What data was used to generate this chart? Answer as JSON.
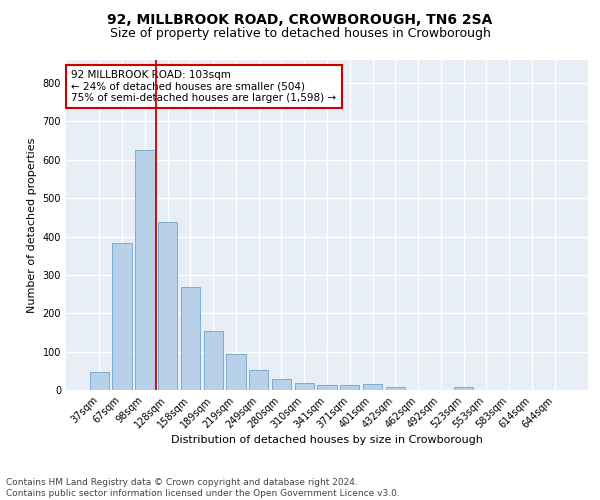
{
  "title": "92, MILLBROOK ROAD, CROWBOROUGH, TN6 2SA",
  "subtitle": "Size of property relative to detached houses in Crowborough",
  "xlabel": "Distribution of detached houses by size in Crowborough",
  "ylabel": "Number of detached properties",
  "categories": [
    "37sqm",
    "67sqm",
    "98sqm",
    "128sqm",
    "158sqm",
    "189sqm",
    "219sqm",
    "249sqm",
    "280sqm",
    "310sqm",
    "341sqm",
    "371sqm",
    "401sqm",
    "432sqm",
    "462sqm",
    "492sqm",
    "523sqm",
    "553sqm",
    "583sqm",
    "614sqm",
    "644sqm"
  ],
  "values": [
    47,
    383,
    625,
    438,
    268,
    154,
    95,
    52,
    28,
    18,
    12,
    12,
    15,
    7,
    0,
    0,
    7,
    0,
    0,
    0,
    0
  ],
  "bar_color": "#b8d0e8",
  "bar_edge_color": "#7aadd4",
  "vline_x": 2.5,
  "vline_color": "#cc0000",
  "annotation_text": "92 MILLBROOK ROAD: 103sqm\n← 24% of detached houses are smaller (504)\n75% of semi-detached houses are larger (1,598) →",
  "annotation_box_color": "#ffffff",
  "annotation_box_edge_color": "#cc0000",
  "ylim": [
    0,
    860
  ],
  "yticks": [
    0,
    100,
    200,
    300,
    400,
    500,
    600,
    700,
    800
  ],
  "background_color": "#e8eef5",
  "grid_color": "#ffffff",
  "footer_text": "Contains HM Land Registry data © Crown copyright and database right 2024.\nContains public sector information licensed under the Open Government Licence v3.0.",
  "title_fontsize": 10,
  "subtitle_fontsize": 9,
  "axis_label_fontsize": 8,
  "tick_fontsize": 7,
  "annotation_fontsize": 7.5,
  "footer_fontsize": 6.5
}
